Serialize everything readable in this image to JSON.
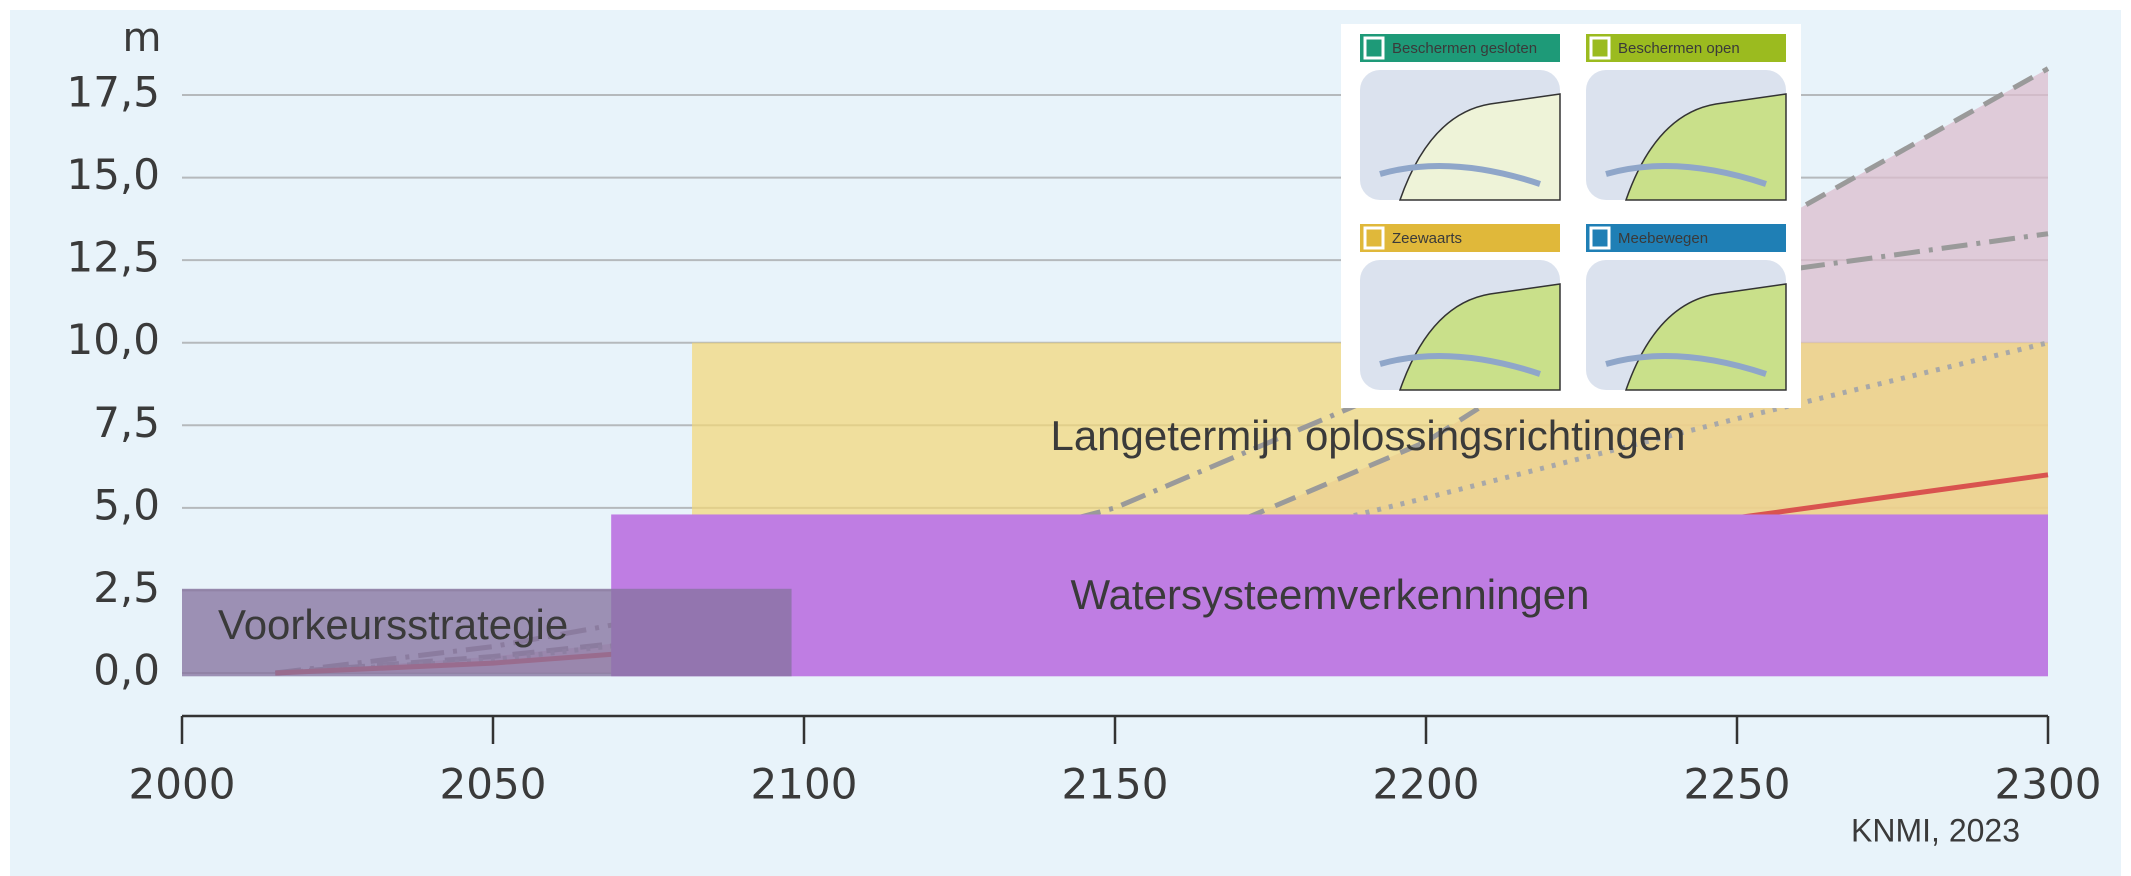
{
  "chart_data": {
    "type": "line",
    "y_unit": "m",
    "source": "KNMI, 2023",
    "x": [
      2015,
      2050,
      2100,
      2150,
      2200,
      2250,
      2300
    ],
    "xlim": [
      2000,
      2300
    ],
    "xticks": [
      2000,
      2050,
      2100,
      2150,
      2200,
      2250,
      2300
    ],
    "ylim": [
      0,
      17.5
    ],
    "yticks": [
      {
        "value": 0,
        "label": "0,0"
      },
      {
        "value": 2.5,
        "label": "2,5"
      },
      {
        "value": 5,
        "label": "5,0"
      },
      {
        "value": 7.5,
        "label": "7,5"
      },
      {
        "value": 10,
        "label": "10,0"
      },
      {
        "value": 12.5,
        "label": "12,5"
      },
      {
        "value": 15,
        "label": "15,0"
      },
      {
        "value": 17.5,
        "label": "17,5"
      }
    ],
    "grid": true,
    "series": [
      {
        "color": "#9a9a9a",
        "dash": "22 12",
        "fill": "rgba(220,190,205,0.75)",
        "values": [
          0,
          0.5,
          1.5,
          3,
          7,
          13,
          18.3
        ]
      },
      {
        "color": "#9a9a9a",
        "dash": "26 9 4 9",
        "values": [
          0,
          0.8,
          2.5,
          5,
          9,
          12,
          13.3
        ]
      },
      {
        "color": "#a8a8a8",
        "dash": "4 8",
        "values": [
          0,
          0.4,
          1.5,
          3,
          5.3,
          7.7,
          10
        ]
      },
      {
        "color": "#d9534f",
        "dash": "",
        "values": [
          0,
          0.3,
          1,
          2,
          3.3,
          4.7,
          6
        ]
      }
    ],
    "regions": [
      {
        "label": "Langetermijn oplossingsrichtingen",
        "x": [
          2082,
          2300
        ],
        "y": [
          0,
          10
        ],
        "color": "rgba(242,215,120,0.72)"
      },
      {
        "label": "Watersysteemverkenningen",
        "x": [
          2069,
          2300
        ],
        "y": [
          -0.1,
          4.8
        ],
        "color": "#bf7de3"
      },
      {
        "label": "Voorkeursstrategie",
        "x": [
          2000,
          2098
        ],
        "y": [
          -0.1,
          2.55
        ],
        "color": "rgba(135,115,160,0.78)"
      }
    ],
    "inset": {
      "panels": [
        {
          "label": "Beschermen gesloten",
          "color": "#1e9a78"
        },
        {
          "label": "Beschermen open",
          "color": "#9bbb1f"
        },
        {
          "label": "Zeewaarts",
          "color": "#e0b83a"
        },
        {
          "label": "Meebewegen",
          "color": "#1f7fb5"
        }
      ]
    }
  }
}
